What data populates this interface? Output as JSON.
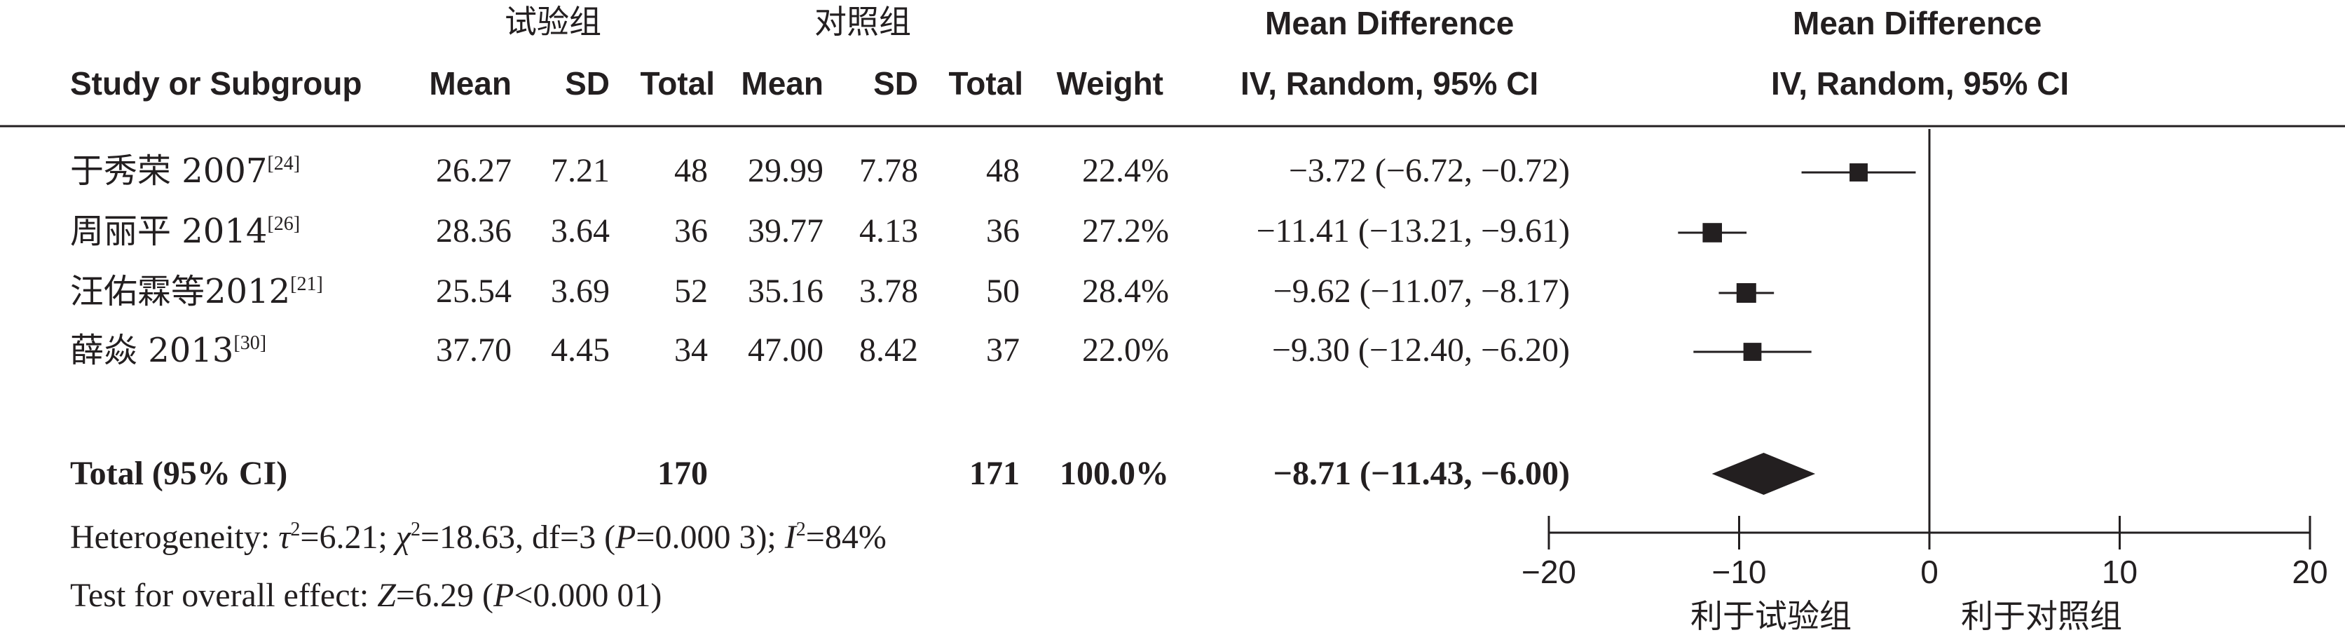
{
  "headers": {
    "group_exp": "试验组",
    "group_ctrl": "对照组",
    "md_title": "Mean Difference",
    "md_method": "IV, Random, 95% CI",
    "plot_title": "Mean Difference",
    "plot_method": "IV, Random, 95% CI",
    "study": "Study or Subgroup",
    "mean": "Mean",
    "sd": "SD",
    "total": "Total",
    "weight": "Weight"
  },
  "studies": [
    {
      "name": "于秀荣 2007",
      "ref": "[24]",
      "exp_mean": "26.27",
      "exp_sd": "7.21",
      "exp_total": "48",
      "ctrl_mean": "29.99",
      "ctrl_sd": "7.78",
      "ctrl_total": "48",
      "weight": "22.4%",
      "ci_text": "−3.72 (−6.72, −0.72)"
    },
    {
      "name": "周丽平 2014",
      "ref": "[26]",
      "exp_mean": "28.36",
      "exp_sd": "3.64",
      "exp_total": "36",
      "ctrl_mean": "39.77",
      "ctrl_sd": "4.13",
      "ctrl_total": "36",
      "weight": "27.2%",
      "ci_text": "−11.41 (−13.21, −9.61)"
    },
    {
      "name": "汪佑霖等2012",
      "ref": "[21]",
      "exp_mean": "25.54",
      "exp_sd": "3.69",
      "exp_total": "52",
      "ctrl_mean": "35.16",
      "ctrl_sd": "3.78",
      "ctrl_total": "50",
      "weight": "28.4%",
      "ci_text": "−9.62 (−11.07, −8.17)"
    },
    {
      "name": "薛焱 2013",
      "ref": "[30]",
      "exp_mean": "37.70",
      "exp_sd": "4.45",
      "exp_total": "34",
      "ctrl_mean": "47.00",
      "ctrl_sd": "8.42",
      "ctrl_total": "37",
      "weight": "22.0%",
      "ci_text": "−9.30 (−12.40, −6.20)"
    }
  ],
  "total": {
    "label": "Total (95% CI)",
    "exp_total": "170",
    "ctrl_total": "171",
    "weight": "100.0%",
    "ci_text": "−8.71 (−11.43, −6.00)"
  },
  "footer": {
    "heterogeneity": {
      "prefix": "Heterogeneity: ",
      "tau": "τ",
      "sq1": "2",
      "tau_val": "=6.21; ",
      "chi": "χ",
      "sq2": "2",
      "chi_val": "=18.63, df=3 (",
      "p": "P",
      "p_val": "=0.000 3); ",
      "i": "I",
      "sq3": "2",
      "i_val": "=84%"
    },
    "overall": {
      "prefix": "Test for overall effect: ",
      "z": "Z",
      "z_val": "=6.29 (",
      "p": "P",
      "p_val": "<0.000 01)"
    }
  },
  "axis_labels": {
    "favours_exp": "利于试验组",
    "favours_ctrl": "利于对照组"
  },
  "chart_data": {
    "type": "forest",
    "xlim": [
      -20,
      20
    ],
    "xticks": [
      -20,
      -10,
      0,
      10,
      20
    ],
    "xtick_labels": [
      "−20",
      "−10",
      "0",
      "10",
      "20"
    ],
    "points": [
      {
        "study": "于秀荣 2007",
        "md": -3.72,
        "lo": -6.72,
        "hi": -0.72,
        "weight": 22.4
      },
      {
        "study": "周丽平 2014",
        "md": -11.41,
        "lo": -13.21,
        "hi": -9.61,
        "weight": 27.2
      },
      {
        "study": "汪佑霖等2012",
        "md": -9.62,
        "lo": -11.07,
        "hi": -8.17,
        "weight": 28.4
      },
      {
        "study": "薛焱 2013",
        "md": -9.3,
        "lo": -12.4,
        "hi": -6.2,
        "weight": 22.0
      }
    ],
    "overall": {
      "md": -8.71,
      "lo": -11.43,
      "hi": -6.0
    },
    "colors": {
      "ink": "#231f20"
    }
  }
}
